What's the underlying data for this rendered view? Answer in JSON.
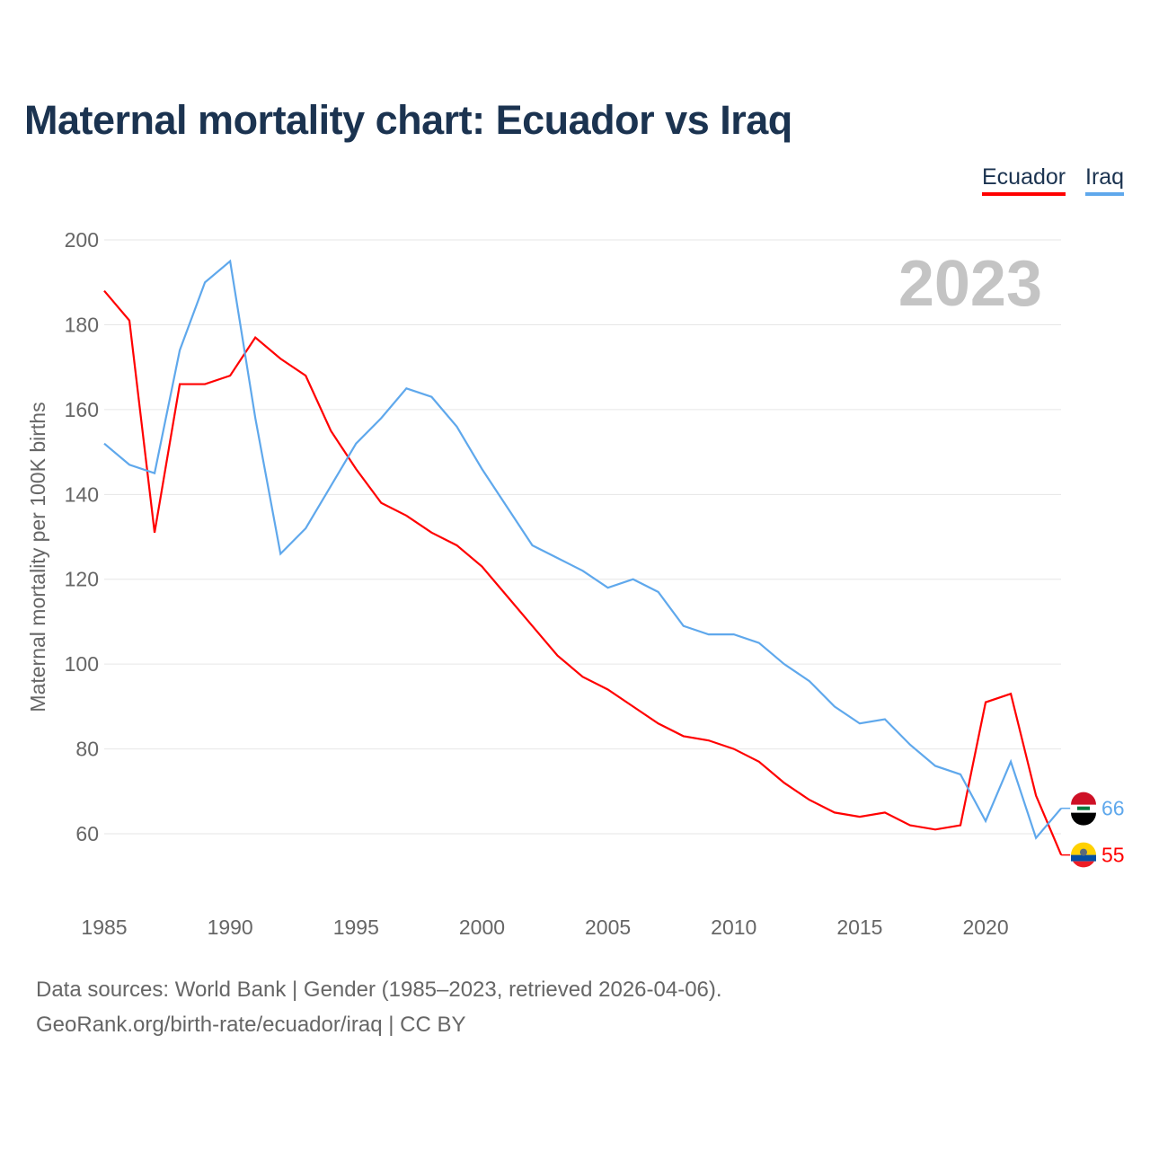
{
  "chart_data": {
    "type": "line",
    "title": "Maternal mortality chart: Ecuador vs Iraq",
    "ylabel": "Maternal mortality per 100K births",
    "xlabel": "",
    "ylim": [
      60,
      200
    ],
    "xlim": [
      1985,
      2023
    ],
    "yticks": [
      60,
      80,
      100,
      120,
      140,
      160,
      180,
      200
    ],
    "xticks": [
      1985,
      1990,
      1995,
      2000,
      2005,
      2010,
      2015,
      2020
    ],
    "year_label": "2023",
    "grid": true,
    "legend_placement": "top-right",
    "x": [
      1985,
      1986,
      1987,
      1988,
      1989,
      1990,
      1991,
      1992,
      1993,
      1994,
      1995,
      1996,
      1997,
      1998,
      1999,
      2000,
      2001,
      2002,
      2003,
      2004,
      2005,
      2006,
      2007,
      2008,
      2009,
      2010,
      2011,
      2012,
      2013,
      2014,
      2015,
      2016,
      2017,
      2018,
      2019,
      2020,
      2021,
      2022,
      2023
    ],
    "series": [
      {
        "name": "Ecuador",
        "color": "#ff0000",
        "end_label": "55",
        "values": [
          188,
          181,
          131,
          166,
          166,
          168,
          177,
          172,
          168,
          155,
          146,
          138,
          135,
          131,
          128,
          123,
          116,
          109,
          102,
          97,
          94,
          90,
          86,
          83,
          82,
          80,
          77,
          72,
          68,
          65,
          64,
          65,
          62,
          61,
          62,
          91,
          93,
          69,
          55
        ]
      },
      {
        "name": "Iraq",
        "color": "#5fa8ec",
        "end_label": "66",
        "values": [
          152,
          147,
          145,
          174,
          190,
          195,
          158,
          126,
          132,
          142,
          152,
          158,
          165,
          163,
          156,
          146,
          137,
          128,
          125,
          122,
          118,
          120,
          117,
          109,
          107,
          107,
          105,
          100,
          96,
          90,
          86,
          87,
          81,
          76,
          74,
          63,
          77,
          59,
          66
        ]
      }
    ]
  },
  "footer": {
    "line1": "Data sources: World Bank | Gender (1985–2023, retrieved 2026-04-06).",
    "line2": "GeoRank.org/birth-rate/ecuador/iraq | CC BY"
  }
}
